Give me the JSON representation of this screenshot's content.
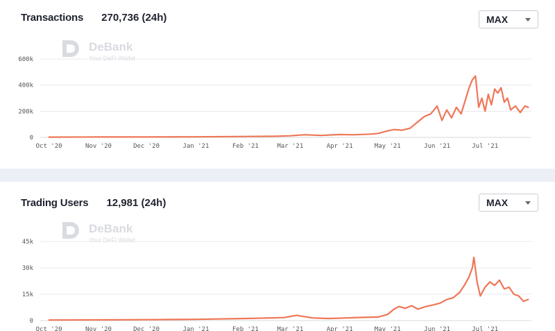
{
  "colors": {
    "line": "#ef7657",
    "grid": "#e6e8ec",
    "panel_gap": "#eceff6"
  },
  "watermark": {
    "brand": "DeBank",
    "tagline": "Your DeFi Wallet",
    "icon": "debank-logo-icon"
  },
  "panels": [
    {
      "title": "Transactions",
      "stat": "270,736 (24h)",
      "range_select": {
        "value": "MAX",
        "icon": "chevron-down-icon"
      }
    },
    {
      "title": "Trading Users",
      "stat": "12,981 (24h)",
      "range_select": {
        "value": "MAX",
        "icon": "chevron-down-icon"
      }
    }
  ],
  "chart_data": [
    {
      "type": "line",
      "title": "Transactions",
      "x_ticks": [
        "Oct '20",
        "Nov '20",
        "Dec '20",
        "Jan '21",
        "Feb '21",
        "Mar '21",
        "Apr '21",
        "May '21",
        "Jun '21",
        "Jul '21"
      ],
      "y_ticks": [
        "0",
        "200k",
        "400k",
        "600k"
      ],
      "ylim": [
        0,
        600000
      ],
      "grid": true,
      "legend": "none",
      "series": [
        {
          "x": [
            "2020-10-01",
            "2020-11-01",
            "2020-12-01",
            "2021-01-01",
            "2021-02-01",
            "2021-02-20",
            "2021-03-01",
            "2021-03-10",
            "2021-03-20",
            "2021-04-01",
            "2021-04-10",
            "2021-04-20",
            "2021-04-25",
            "2021-05-01",
            "2021-05-05",
            "2021-05-10",
            "2021-05-15",
            "2021-05-20",
            "2021-05-24",
            "2021-05-28",
            "2021-06-01",
            "2021-06-04",
            "2021-06-07",
            "2021-06-10",
            "2021-06-13",
            "2021-06-16",
            "2021-06-19",
            "2021-06-21",
            "2021-06-23",
            "2021-06-25",
            "2021-06-27",
            "2021-06-29",
            "2021-07-01",
            "2021-07-03",
            "2021-07-05",
            "2021-07-07",
            "2021-07-09",
            "2021-07-11",
            "2021-07-13",
            "2021-07-15",
            "2021-07-17",
            "2021-07-20",
            "2021-07-23",
            "2021-07-26",
            "2021-07-28"
          ],
          "y": [
            2000,
            3000,
            3000,
            4000,
            7000,
            9000,
            12000,
            20000,
            15000,
            22000,
            20000,
            25000,
            30000,
            50000,
            60000,
            55000,
            70000,
            120000,
            160000,
            180000,
            240000,
            130000,
            210000,
            150000,
            230000,
            180000,
            300000,
            380000,
            440000,
            470000,
            230000,
            300000,
            200000,
            330000,
            250000,
            370000,
            340000,
            380000,
            270000,
            300000,
            210000,
            240000,
            190000,
            240000,
            230000
          ]
        }
      ]
    },
    {
      "type": "line",
      "title": "Trading Users",
      "x_ticks": [
        "Oct '20",
        "Nov '20",
        "Dec '20",
        "Jan '21",
        "Feb '21",
        "Mar '21",
        "Apr '21",
        "May '21",
        "Jun '21",
        "Jul '21"
      ],
      "y_ticks": [
        "0",
        "15k",
        "30k",
        "45k"
      ],
      "ylim": [
        0,
        45000
      ],
      "grid": true,
      "legend": "none",
      "series": [
        {
          "x": [
            "2020-10-01",
            "2020-11-01",
            "2020-12-01",
            "2021-01-01",
            "2021-02-01",
            "2021-02-25",
            "2021-03-05",
            "2021-03-15",
            "2021-03-25",
            "2021-04-05",
            "2021-04-15",
            "2021-04-25",
            "2021-05-01",
            "2021-05-05",
            "2021-05-08",
            "2021-05-12",
            "2021-05-16",
            "2021-05-20",
            "2021-05-25",
            "2021-05-30",
            "2021-06-03",
            "2021-06-07",
            "2021-06-11",
            "2021-06-15",
            "2021-06-18",
            "2021-06-21",
            "2021-06-23",
            "2021-06-24",
            "2021-06-26",
            "2021-06-28",
            "2021-07-01",
            "2021-07-04",
            "2021-07-07",
            "2021-07-10",
            "2021-07-13",
            "2021-07-16",
            "2021-07-19",
            "2021-07-22",
            "2021-07-25",
            "2021-07-28"
          ],
          "y": [
            300,
            400,
            500,
            700,
            1200,
            1700,
            3000,
            1500,
            1200,
            1500,
            1800,
            2000,
            3500,
            6500,
            8000,
            7000,
            8500,
            6500,
            8000,
            9000,
            10000,
            12000,
            13000,
            16000,
            20000,
            25000,
            30000,
            36000,
            22000,
            14000,
            19000,
            22000,
            20000,
            23000,
            18000,
            19000,
            15000,
            14000,
            11000,
            12000
          ]
        }
      ]
    }
  ]
}
